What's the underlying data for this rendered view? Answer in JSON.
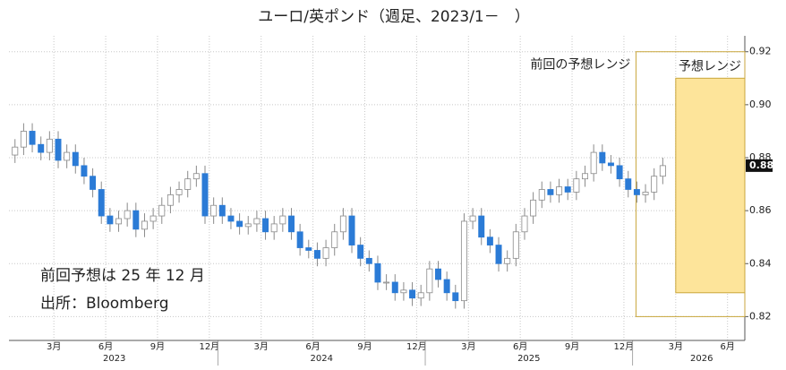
{
  "chart_data": {
    "type": "candlestick",
    "title": "ユーロ/英ポンド（週足、2023/1－　）",
    "notes": [
      "前回予想は 25 年 12 月",
      "出所：Bloomberg"
    ],
    "xlim": [
      -0.1,
      42.5
    ],
    "ylim": [
      0.811,
      0.926
    ],
    "yticks": [
      0.82,
      0.84,
      0.86,
      0.88,
      {
        "value": 0.9,
        "label": "0.90"
      },
      0.92
    ],
    "xticks": [
      {
        "value": 2.5,
        "label": "3月"
      },
      {
        "value": 5.5,
        "label": "6月"
      },
      {
        "value": 8.5,
        "label": "9月"
      },
      {
        "value": 11.5,
        "label": "12月"
      },
      {
        "value": 14.5,
        "label": "3月"
      },
      {
        "value": 17.5,
        "label": "6月"
      },
      {
        "value": 20.5,
        "label": "9月"
      },
      {
        "value": 23.5,
        "label": "12月"
      },
      {
        "value": 26.5,
        "label": "3月"
      },
      {
        "value": 29.5,
        "label": "6月"
      },
      {
        "value": 32.5,
        "label": "9月"
      },
      {
        "value": 35.5,
        "label": "12月"
      },
      {
        "value": 38.5,
        "label": "3月"
      },
      {
        "value": 41.5,
        "label": "6月"
      }
    ],
    "year_ticks": [
      {
        "value": 6,
        "label": "2023"
      },
      {
        "value": 18,
        "label": "2024"
      },
      {
        "value": 30,
        "label": "2025"
      },
      {
        "value": 40,
        "label": "2026"
      }
    ],
    "year_boundaries": [
      12,
      24,
      36
    ],
    "grid": true,
    "up_color": "#ffffff",
    "down_color": "#2b7bd6",
    "wick_color": "#8a8a8a",
    "x": [
      0.25,
      0.75,
      1.25,
      1.75,
      2.25,
      2.75,
      3.25,
      3.75,
      4.25,
      4.75,
      5.25,
      5.75,
      6.25,
      6.75,
      7.25,
      7.75,
      8.25,
      8.75,
      9.25,
      9.75,
      10.25,
      10.75,
      11.25,
      11.75,
      12.25,
      12.75,
      13.25,
      13.75,
      14.25,
      14.75,
      15.25,
      15.75,
      16.25,
      16.75,
      17.25,
      17.75,
      18.25,
      18.75,
      19.25,
      19.75,
      20.25,
      20.75,
      21.25,
      21.75,
      22.25,
      22.75,
      23.25,
      23.75,
      24.25,
      24.75,
      25.25,
      25.75,
      26.25,
      26.75,
      27.25,
      27.75,
      28.25,
      28.75,
      29.25,
      29.75,
      30.25,
      30.75,
      31.25,
      31.75,
      32.25,
      32.75,
      33.25,
      33.75,
      34.25,
      34.75,
      35.25,
      35.75,
      36.25,
      36.75,
      37.25,
      37.75
    ],
    "open": [
      0.881,
      0.884,
      0.89,
      0.885,
      0.882,
      0.887,
      0.879,
      0.882,
      0.877,
      0.873,
      0.868,
      0.858,
      0.855,
      0.857,
      0.86,
      0.853,
      0.856,
      0.858,
      0.862,
      0.866,
      0.868,
      0.872,
      0.874,
      0.858,
      0.862,
      0.858,
      0.856,
      0.854,
      0.855,
      0.857,
      0.852,
      0.855,
      0.858,
      0.852,
      0.846,
      0.845,
      0.842,
      0.846,
      0.852,
      0.858,
      0.847,
      0.842,
      0.84,
      0.833,
      0.833,
      0.829,
      0.83,
      0.827,
      0.829,
      0.838,
      0.834,
      0.829,
      0.826,
      0.856,
      0.858,
      0.85,
      0.847,
      0.84,
      0.842,
      0.852,
      0.858,
      0.864,
      0.868,
      0.866,
      0.869,
      0.867,
      0.872,
      0.874,
      0.882,
      0.878,
      0.877,
      0.872,
      0.868,
      0.866,
      0.867,
      0.873
    ],
    "high": [
      0.887,
      0.893,
      0.893,
      0.888,
      0.89,
      0.89,
      0.885,
      0.885,
      0.88,
      0.876,
      0.871,
      0.861,
      0.86,
      0.863,
      0.863,
      0.859,
      0.861,
      0.865,
      0.869,
      0.871,
      0.875,
      0.877,
      0.877,
      0.865,
      0.865,
      0.861,
      0.859,
      0.858,
      0.86,
      0.86,
      0.858,
      0.861,
      0.861,
      0.855,
      0.849,
      0.848,
      0.849,
      0.855,
      0.861,
      0.861,
      0.85,
      0.845,
      0.843,
      0.836,
      0.836,
      0.833,
      0.833,
      0.832,
      0.841,
      0.841,
      0.837,
      0.832,
      0.859,
      0.861,
      0.861,
      0.853,
      0.85,
      0.845,
      0.855,
      0.861,
      0.867,
      0.871,
      0.871,
      0.872,
      0.872,
      0.875,
      0.877,
      0.885,
      0.885,
      0.881,
      0.88,
      0.875,
      0.871,
      0.87,
      0.876,
      0.88
    ],
    "low": [
      0.878,
      0.881,
      0.882,
      0.879,
      0.879,
      0.876,
      0.876,
      0.874,
      0.87,
      0.865,
      0.855,
      0.852,
      0.852,
      0.854,
      0.85,
      0.85,
      0.853,
      0.855,
      0.859,
      0.863,
      0.865,
      0.869,
      0.855,
      0.855,
      0.855,
      0.853,
      0.851,
      0.851,
      0.852,
      0.849,
      0.849,
      0.852,
      0.849,
      0.843,
      0.842,
      0.839,
      0.839,
      0.843,
      0.849,
      0.844,
      0.839,
      0.837,
      0.83,
      0.83,
      0.826,
      0.826,
      0.824,
      0.824,
      0.826,
      0.831,
      0.826,
      0.823,
      0.823,
      0.853,
      0.847,
      0.844,
      0.837,
      0.837,
      0.839,
      0.849,
      0.855,
      0.861,
      0.863,
      0.863,
      0.864,
      0.864,
      0.869,
      0.871,
      0.875,
      0.874,
      0.869,
      0.865,
      0.863,
      0.863,
      0.864,
      0.87
    ],
    "close": [
      0.884,
      0.89,
      0.885,
      0.882,
      0.887,
      0.879,
      0.882,
      0.877,
      0.873,
      0.868,
      0.858,
      0.855,
      0.857,
      0.86,
      0.853,
      0.856,
      0.858,
      0.862,
      0.866,
      0.868,
      0.872,
      0.874,
      0.858,
      0.862,
      0.858,
      0.856,
      0.854,
      0.855,
      0.857,
      0.852,
      0.855,
      0.858,
      0.852,
      0.846,
      0.845,
      0.842,
      0.846,
      0.852,
      0.858,
      0.847,
      0.842,
      0.84,
      0.833,
      0.833,
      0.829,
      0.83,
      0.827,
      0.829,
      0.838,
      0.834,
      0.829,
      0.826,
      0.856,
      0.858,
      0.85,
      0.847,
      0.84,
      0.842,
      0.852,
      0.858,
      0.864,
      0.868,
      0.866,
      0.869,
      0.867,
      0.872,
      0.874,
      0.882,
      0.878,
      0.877,
      0.872,
      0.868,
      0.866,
      0.867,
      0.873,
      0.877
    ],
    "last_price": {
      "value": 0.877,
      "label": "0.88"
    },
    "ranges": [
      {
        "label": "前回の予想レンジ",
        "x_start": 36.2,
        "low": 0.82,
        "high": 0.92,
        "fill": "none",
        "color": "#c9a63c"
      },
      {
        "label": "予想レンジ",
        "x_start": 38.5,
        "low": 0.829,
        "high": 0.91,
        "fill": "#fde49a",
        "color": "#c9a63c"
      }
    ]
  }
}
